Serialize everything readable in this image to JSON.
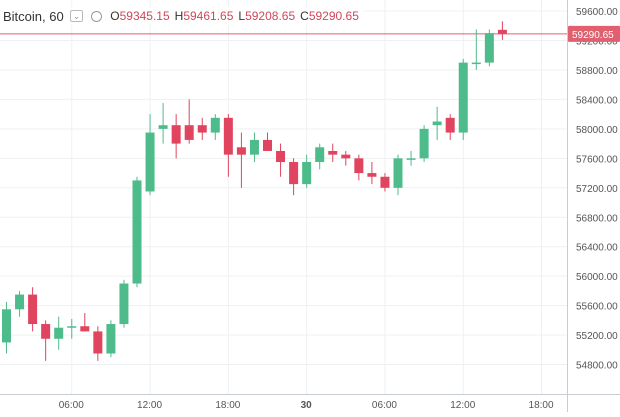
{
  "legend": {
    "symbol": "Bitcoin, 60",
    "open_label": "O",
    "open": "59345.15",
    "high_label": "H",
    "high": "59461.65",
    "low_label": "L",
    "low": "59208.65",
    "close_label": "C",
    "close": "59290.65"
  },
  "last_price_label": "59290.65",
  "colors": {
    "up": "#4dbb8a",
    "down": "#e0445f",
    "grid": "#eef0f3",
    "axis_text": "#555555",
    "price_line": "#e06070"
  },
  "chart_data": {
    "type": "candlestick",
    "title": "Bitcoin, 60",
    "ylim": [
      54400,
      59750
    ],
    "y_ticks": [
      54800,
      55200,
      55600,
      56000,
      56400,
      56800,
      57200,
      57600,
      58000,
      58400,
      58800,
      59200,
      59600
    ],
    "y_tick_labels": [
      "54800.00",
      "55200.00",
      "55600.00",
      "56000.00",
      "56400.00",
      "56800.00",
      "57200.00",
      "57600.00",
      "58000.00",
      "58400.00",
      "58800.00",
      "59200.00",
      "59600.00"
    ],
    "x_tick_labels": [
      "06:00",
      "12:00",
      "18:00",
      "30",
      "06:00",
      "12:00",
      "18:00"
    ],
    "x_tick_bar_index": [
      5,
      11,
      17,
      23,
      29,
      35,
      41
    ],
    "last_price": 59290.65,
    "candles": [
      {
        "o": 55100,
        "h": 55650,
        "l": 54950,
        "c": 55550
      },
      {
        "o": 55550,
        "h": 55800,
        "l": 55450,
        "c": 55750
      },
      {
        "o": 55750,
        "h": 55850,
        "l": 55250,
        "c": 55350
      },
      {
        "o": 55350,
        "h": 55400,
        "l": 54850,
        "c": 55150
      },
      {
        "o": 55150,
        "h": 55450,
        "l": 55000,
        "c": 55300
      },
      {
        "o": 55300,
        "h": 55420,
        "l": 55150,
        "c": 55320
      },
      {
        "o": 55320,
        "h": 55500,
        "l": 55250,
        "c": 55250
      },
      {
        "o": 55250,
        "h": 55320,
        "l": 54850,
        "c": 54950
      },
      {
        "o": 54950,
        "h": 55400,
        "l": 54900,
        "c": 55350
      },
      {
        "o": 55350,
        "h": 55950,
        "l": 55300,
        "c": 55900
      },
      {
        "o": 55900,
        "h": 57350,
        "l": 55850,
        "c": 57300
      },
      {
        "o": 57150,
        "h": 58200,
        "l": 57100,
        "c": 57950
      },
      {
        "o": 58000,
        "h": 58350,
        "l": 57800,
        "c": 58050
      },
      {
        "o": 58050,
        "h": 58200,
        "l": 57600,
        "c": 57800
      },
      {
        "o": 58050,
        "h": 58400,
        "l": 57800,
        "c": 57850
      },
      {
        "o": 58050,
        "h": 58150,
        "l": 57850,
        "c": 57950
      },
      {
        "o": 57950,
        "h": 58200,
        "l": 57850,
        "c": 58150
      },
      {
        "o": 58150,
        "h": 58200,
        "l": 57350,
        "c": 57650
      },
      {
        "o": 57750,
        "h": 57950,
        "l": 57200,
        "c": 57650
      },
      {
        "o": 57650,
        "h": 57950,
        "l": 57550,
        "c": 57850
      },
      {
        "o": 57850,
        "h": 57950,
        "l": 57700,
        "c": 57700
      },
      {
        "o": 57700,
        "h": 57800,
        "l": 57350,
        "c": 57550
      },
      {
        "o": 57550,
        "h": 57600,
        "l": 57100,
        "c": 57250
      },
      {
        "o": 57250,
        "h": 57650,
        "l": 57200,
        "c": 57550
      },
      {
        "o": 57550,
        "h": 57800,
        "l": 57450,
        "c": 57750
      },
      {
        "o": 57700,
        "h": 57800,
        "l": 57550,
        "c": 57650
      },
      {
        "o": 57650,
        "h": 57700,
        "l": 57500,
        "c": 57600
      },
      {
        "o": 57600,
        "h": 57650,
        "l": 57300,
        "c": 57400
      },
      {
        "o": 57400,
        "h": 57550,
        "l": 57250,
        "c": 57350
      },
      {
        "o": 57350,
        "h": 57400,
        "l": 57150,
        "c": 57200
      },
      {
        "o": 57200,
        "h": 57650,
        "l": 57100,
        "c": 57600
      },
      {
        "o": 57600,
        "h": 57700,
        "l": 57500,
        "c": 57600
      },
      {
        "o": 57600,
        "h": 58050,
        "l": 57550,
        "c": 58000
      },
      {
        "o": 58050,
        "h": 58300,
        "l": 57850,
        "c": 58100
      },
      {
        "o": 58150,
        "h": 58200,
        "l": 57850,
        "c": 57950
      },
      {
        "o": 57950,
        "h": 58950,
        "l": 57850,
        "c": 58900
      },
      {
        "o": 58900,
        "h": 59350,
        "l": 58800,
        "c": 58900
      },
      {
        "o": 58900,
        "h": 59350,
        "l": 58850,
        "c": 59300
      },
      {
        "o": 59345.15,
        "h": 59461.65,
        "l": 59208.65,
        "c": 59290.65
      }
    ]
  }
}
